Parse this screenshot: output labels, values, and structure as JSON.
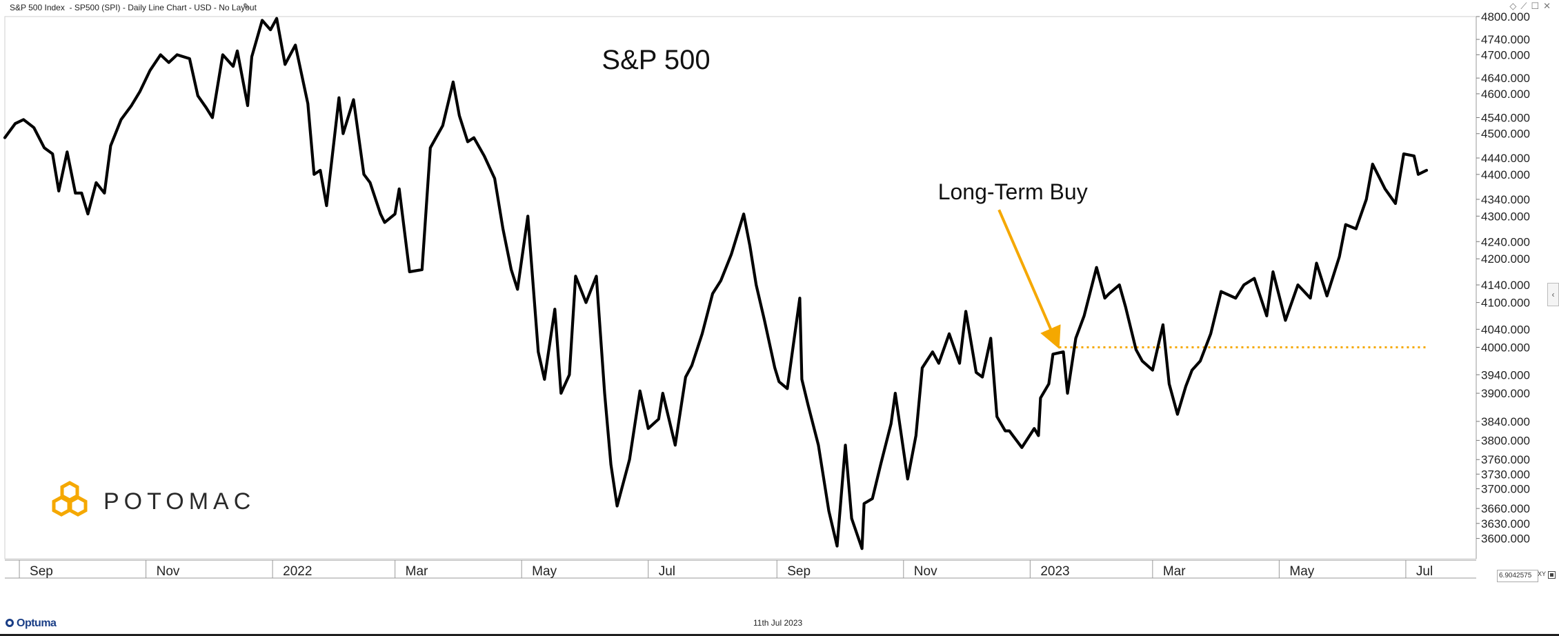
{
  "header": {
    "title": "S&P 500 Index  - SP500 (SPI) - Daily Line Chart - USD - No Layout",
    "edit_icon": "pencil-icon",
    "controls": [
      "pin-icon",
      "link-icon",
      "restore-icon",
      "close-icon"
    ]
  },
  "footer": {
    "brand": "Optuma",
    "date": "11th Jul 2023",
    "readout": "6.9042575",
    "xy_label": "XY"
  },
  "logo": {
    "text": "POTOMAC",
    "color": "#F5A800"
  },
  "colors": {
    "line": "#000000",
    "annotation": "#F5A800",
    "axis": "#999999",
    "text": "#222222"
  },
  "chart_data": {
    "type": "line",
    "title": "S&P 500",
    "xlabel": "",
    "ylabel": "",
    "x_range": [
      "2021-08-25",
      "2023-07-11"
    ],
    "ylim": [
      3560,
      4800
    ],
    "grid": false,
    "legend": "none",
    "y_ticks": [
      4800,
      4740,
      4700,
      4640,
      4600,
      4540,
      4500,
      4440,
      4400,
      4340,
      4300,
      4240,
      4200,
      4140,
      4100,
      4040,
      4000,
      3940,
      3900,
      3840,
      3800,
      3760,
      3730,
      3700,
      3660,
      3630,
      3600
    ],
    "y_tick_labels": [
      "4800.000",
      "4740.000",
      "4700.000",
      "4640.000",
      "4600.000",
      "4540.000",
      "4500.000",
      "4440.000",
      "4400.000",
      "4340.000",
      "4300.000",
      "4240.000",
      "4200.000",
      "4140.000",
      "4100.000",
      "4040.000",
      "4000.000",
      "3940.000",
      "3900.000",
      "3840.000",
      "3800.000",
      "3760.000",
      "3730.000",
      "3700.000",
      "3660.000",
      "3630.000",
      "3600.000"
    ],
    "x_ticks": [
      {
        "label": "Sep",
        "date": "2021-09-01"
      },
      {
        "label": "Nov",
        "date": "2021-11-01"
      },
      {
        "label": "2022",
        "date": "2022-01-01"
      },
      {
        "label": "Mar",
        "date": "2022-03-01"
      },
      {
        "label": "May",
        "date": "2022-05-01"
      },
      {
        "label": "Jul",
        "date": "2022-07-01"
      },
      {
        "label": "Sep",
        "date": "2022-09-01"
      },
      {
        "label": "Nov",
        "date": "2022-11-01"
      },
      {
        "label": "2023",
        "date": "2023-01-01"
      },
      {
        "label": "Mar",
        "date": "2023-03-01"
      },
      {
        "label": "May",
        "date": "2023-05-01"
      },
      {
        "label": "Jul",
        "date": "2023-07-01"
      }
    ],
    "series": [
      {
        "color": "#000000",
        "points": [
          [
            "2021-08-25",
            4490
          ],
          [
            "2021-08-30",
            4525
          ],
          [
            "2021-09-03",
            4535
          ],
          [
            "2021-09-08",
            4515
          ],
          [
            "2021-09-13",
            4465
          ],
          [
            "2021-09-17",
            4450
          ],
          [
            "2021-09-20",
            4360
          ],
          [
            "2021-09-24",
            4455
          ],
          [
            "2021-09-28",
            4355
          ],
          [
            "2021-10-01",
            4355
          ],
          [
            "2021-10-04",
            4305
          ],
          [
            "2021-10-08",
            4380
          ],
          [
            "2021-10-12",
            4355
          ],
          [
            "2021-10-15",
            4470
          ],
          [
            "2021-10-20",
            4535
          ],
          [
            "2021-10-25",
            4570
          ],
          [
            "2021-10-29",
            4605
          ],
          [
            "2021-11-03",
            4660
          ],
          [
            "2021-11-08",
            4700
          ],
          [
            "2021-11-12",
            4680
          ],
          [
            "2021-11-16",
            4700
          ],
          [
            "2021-11-22",
            4690
          ],
          [
            "2021-11-26",
            4595
          ],
          [
            "2021-11-30",
            4565
          ],
          [
            "2021-12-03",
            4540
          ],
          [
            "2021-12-08",
            4700
          ],
          [
            "2021-12-13",
            4670
          ],
          [
            "2021-12-15",
            4710
          ],
          [
            "2021-12-20",
            4570
          ],
          [
            "2021-12-22",
            4695
          ],
          [
            "2021-12-27",
            4790
          ],
          [
            "2021-12-31",
            4765
          ],
          [
            "2022-01-03",
            4795
          ],
          [
            "2022-01-07",
            4675
          ],
          [
            "2022-01-12",
            4725
          ],
          [
            "2022-01-18",
            4575
          ],
          [
            "2022-01-21",
            4400
          ],
          [
            "2022-01-24",
            4410
          ],
          [
            "2022-01-27",
            4325
          ],
          [
            "2022-02-02",
            4590
          ],
          [
            "2022-02-04",
            4500
          ],
          [
            "2022-02-09",
            4585
          ],
          [
            "2022-02-14",
            4400
          ],
          [
            "2022-02-17",
            4380
          ],
          [
            "2022-02-22",
            4305
          ],
          [
            "2022-02-24",
            4285
          ],
          [
            "2022-03-01",
            4305
          ],
          [
            "2022-03-03",
            4365
          ],
          [
            "2022-03-08",
            4170
          ],
          [
            "2022-03-14",
            4175
          ],
          [
            "2022-03-18",
            4465
          ],
          [
            "2022-03-24",
            4520
          ],
          [
            "2022-03-29",
            4630
          ],
          [
            "2022-04-01",
            4545
          ],
          [
            "2022-04-05",
            4480
          ],
          [
            "2022-04-08",
            4490
          ],
          [
            "2022-04-13",
            4445
          ],
          [
            "2022-04-18",
            4390
          ],
          [
            "2022-04-22",
            4270
          ],
          [
            "2022-04-26",
            4175
          ],
          [
            "2022-04-29",
            4130
          ],
          [
            "2022-05-04",
            4300
          ],
          [
            "2022-05-09",
            3990
          ],
          [
            "2022-05-12",
            3930
          ],
          [
            "2022-05-17",
            4085
          ],
          [
            "2022-05-20",
            3900
          ],
          [
            "2022-05-24",
            3940
          ],
          [
            "2022-05-27",
            4160
          ],
          [
            "2022-06-01",
            4100
          ],
          [
            "2022-06-06",
            4160
          ],
          [
            "2022-06-10",
            3900
          ],
          [
            "2022-06-13",
            3750
          ],
          [
            "2022-06-16",
            3665
          ],
          [
            "2022-06-22",
            3760
          ],
          [
            "2022-06-27",
            3905
          ],
          [
            "2022-07-01",
            3825
          ],
          [
            "2022-07-06",
            3845
          ],
          [
            "2022-07-08",
            3900
          ],
          [
            "2022-07-14",
            3790
          ],
          [
            "2022-07-19",
            3935
          ],
          [
            "2022-07-22",
            3960
          ],
          [
            "2022-07-27",
            4030
          ],
          [
            "2022-08-01",
            4120
          ],
          [
            "2022-08-05",
            4150
          ],
          [
            "2022-08-10",
            4210
          ],
          [
            "2022-08-16",
            4305
          ],
          [
            "2022-08-19",
            4230
          ],
          [
            "2022-08-22",
            4140
          ],
          [
            "2022-08-26",
            4060
          ],
          [
            "2022-08-31",
            3955
          ],
          [
            "2022-09-02",
            3925
          ],
          [
            "2022-09-06",
            3910
          ],
          [
            "2022-09-12",
            4110
          ],
          [
            "2022-09-13",
            3930
          ],
          [
            "2022-09-16",
            3875
          ],
          [
            "2022-09-21",
            3790
          ],
          [
            "2022-09-26",
            3655
          ],
          [
            "2022-09-30",
            3585
          ],
          [
            "2022-10-04",
            3790
          ],
          [
            "2022-10-07",
            3640
          ],
          [
            "2022-10-12",
            3580
          ],
          [
            "2022-10-13",
            3670
          ],
          [
            "2022-10-17",
            3680
          ],
          [
            "2022-10-21",
            3750
          ],
          [
            "2022-10-26",
            3835
          ],
          [
            "2022-10-28",
            3900
          ],
          [
            "2022-11-03",
            3720
          ],
          [
            "2022-11-07",
            3810
          ],
          [
            "2022-11-10",
            3955
          ],
          [
            "2022-11-15",
            3990
          ],
          [
            "2022-11-18",
            3965
          ],
          [
            "2022-11-23",
            4030
          ],
          [
            "2022-11-28",
            3965
          ],
          [
            "2022-12-01",
            4080
          ],
          [
            "2022-12-06",
            3945
          ],
          [
            "2022-12-09",
            3935
          ],
          [
            "2022-12-13",
            4020
          ],
          [
            "2022-12-16",
            3850
          ],
          [
            "2022-12-20",
            3820
          ],
          [
            "2022-12-22",
            3820
          ],
          [
            "2022-12-28",
            3785
          ],
          [
            "2023-01-03",
            3825
          ],
          [
            "2023-01-05",
            3810
          ],
          [
            "2023-01-06",
            3890
          ],
          [
            "2023-01-10",
            3920
          ],
          [
            "2023-01-12",
            3985
          ],
          [
            "2023-01-17",
            3990
          ],
          [
            "2023-01-19",
            3900
          ],
          [
            "2023-01-23",
            4020
          ],
          [
            "2023-01-27",
            4070
          ],
          [
            "2023-02-02",
            4180
          ],
          [
            "2023-02-06",
            4110
          ],
          [
            "2023-02-08",
            4120
          ],
          [
            "2023-02-13",
            4140
          ],
          [
            "2023-02-16",
            4090
          ],
          [
            "2023-02-21",
            3995
          ],
          [
            "2023-02-24",
            3970
          ],
          [
            "2023-03-01",
            3950
          ],
          [
            "2023-03-06",
            4050
          ],
          [
            "2023-03-09",
            3920
          ],
          [
            "2023-03-13",
            3855
          ],
          [
            "2023-03-17",
            3915
          ],
          [
            "2023-03-20",
            3950
          ],
          [
            "2023-03-24",
            3970
          ],
          [
            "2023-03-29",
            4030
          ],
          [
            "2023-04-03",
            4125
          ],
          [
            "2023-04-10",
            4110
          ],
          [
            "2023-04-14",
            4140
          ],
          [
            "2023-04-19",
            4155
          ],
          [
            "2023-04-25",
            4070
          ],
          [
            "2023-04-28",
            4170
          ],
          [
            "2023-05-04",
            4060
          ],
          [
            "2023-05-10",
            4140
          ],
          [
            "2023-05-16",
            4110
          ],
          [
            "2023-05-19",
            4190
          ],
          [
            "2023-05-24",
            4115
          ],
          [
            "2023-05-30",
            4205
          ],
          [
            "2023-06-02",
            4280
          ],
          [
            "2023-06-07",
            4270
          ],
          [
            "2023-06-12",
            4340
          ],
          [
            "2023-06-15",
            4425
          ],
          [
            "2023-06-21",
            4365
          ],
          [
            "2023-06-26",
            4330
          ],
          [
            "2023-06-30",
            4450
          ],
          [
            "2023-07-05",
            4445
          ],
          [
            "2023-07-07",
            4400
          ],
          [
            "2023-07-11",
            4410
          ]
        ]
      }
    ],
    "annotations": [
      {
        "text": "Long-Term Buy",
        "type": "arrow",
        "from": [
          "2022-12-17",
          4315
        ],
        "to": [
          "2023-01-15",
          4000
        ]
      },
      {
        "type": "dotted-hline",
        "y": 4000,
        "from_date": "2023-01-15",
        "to_date": "2023-07-11"
      }
    ]
  }
}
